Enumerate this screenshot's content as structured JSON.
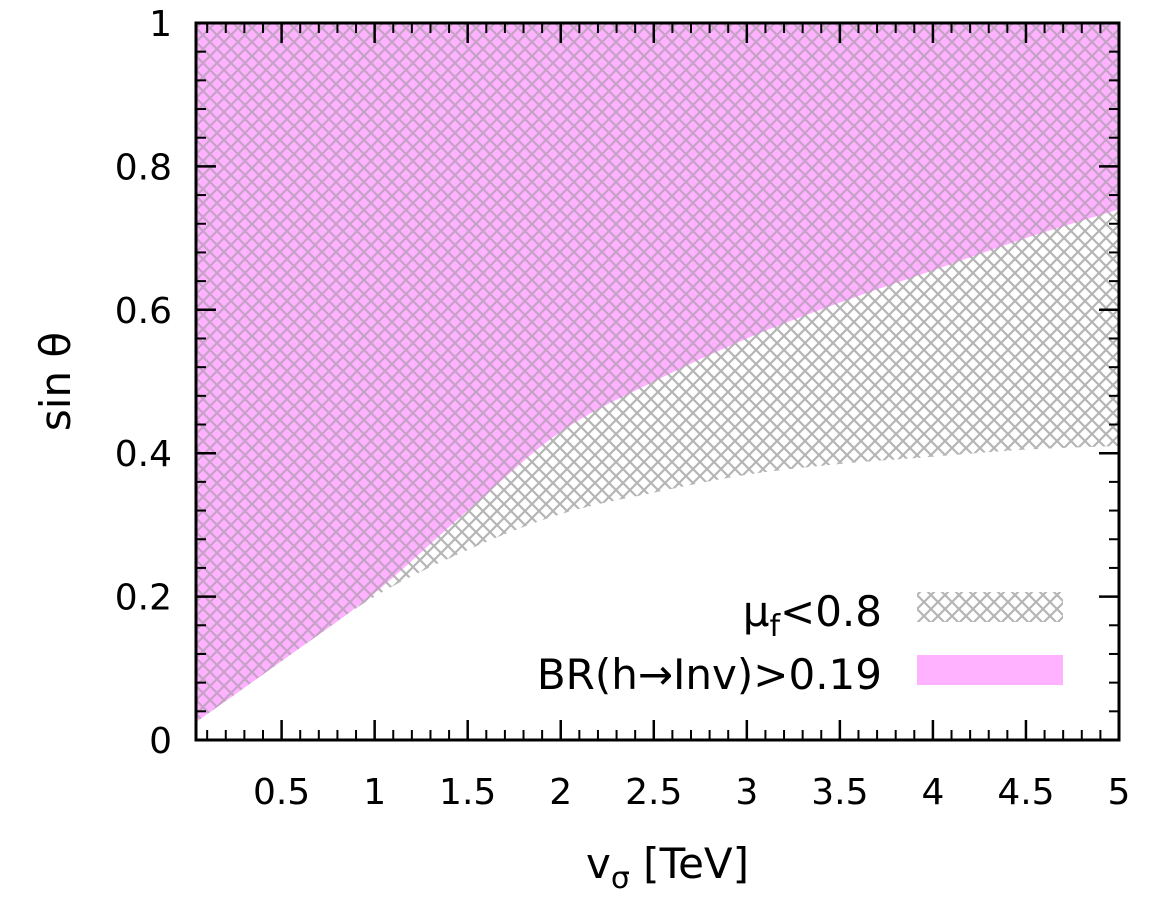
{
  "chart_data": {
    "type": "area",
    "xlabel_main": "v",
    "xlabel_sub": "σ",
    "xlabel_unit": " [TeV]",
    "ylabel": "sin θ",
    "xlim": [
      0.04,
      5
    ],
    "ylim": [
      0,
      1
    ],
    "xticks": [
      0.5,
      1,
      1.5,
      2,
      2.5,
      3,
      3.5,
      4,
      4.5,
      5
    ],
    "xtick_labels": [
      "0.5",
      "1",
      "1.5",
      "2",
      "2.5",
      "3",
      "3.5",
      "4",
      "4.5",
      "5"
    ],
    "yticks": [
      0,
      0.2,
      0.4,
      0.6,
      0.8,
      1
    ],
    "ytick_labels": [
      "0",
      "0.2",
      "0.4",
      "0.6",
      "0.8",
      "1"
    ],
    "x_minor_step": 0.1,
    "y_minor_step": 0.04,
    "legend_position": "bottom-right",
    "series": [
      {
        "name_main": "μ",
        "name_sub": "f",
        "name_rest": "<0.8",
        "style": "crosshatch",
        "color": "#bdbdbd",
        "region": "between lower and upper curves",
        "x": [
          0.04,
          0.5,
          1.0,
          1.5,
          2.0,
          2.5,
          3.0,
          3.5,
          4.0,
          4.5,
          5.0
        ],
        "lower": [
          0.025,
          0.11,
          0.2,
          0.265,
          0.315,
          0.345,
          0.37,
          0.385,
          0.395,
          0.405,
          0.41
        ],
        "upper": [
          1,
          1,
          1,
          1,
          1,
          1,
          1,
          1,
          1,
          1,
          1
        ]
      },
      {
        "name": "BR(h→Inv)>0.19",
        "style": "solid",
        "color": "#ff66ff",
        "region": "above boundary",
        "x": [
          0.04,
          0.5,
          1.0,
          1.5,
          2.0,
          2.5,
          3.0,
          3.5,
          4.0,
          4.5,
          5.0
        ],
        "boundary": [
          0.025,
          0.11,
          0.205,
          0.32,
          0.43,
          0.5,
          0.56,
          0.61,
          0.655,
          0.7,
          0.74
        ]
      }
    ]
  }
}
